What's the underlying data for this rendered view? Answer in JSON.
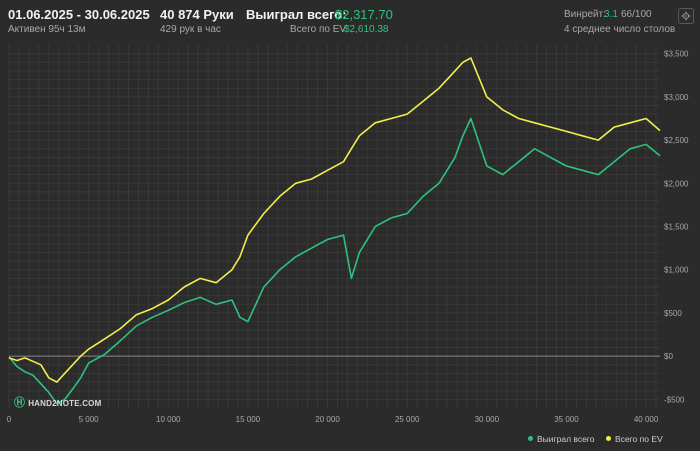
{
  "header": {
    "date_range": "01.06.2025 - 30.06.2025",
    "active_time": "Активен 95ч 13м",
    "hands": "40 874 Руки",
    "hands_per_hour": "429 рук в час",
    "won_label": "Выиграл всего:",
    "won_value": "$2,317.70",
    "ev_label": "Всего по EV:",
    "ev_value": "$2,610.38",
    "winrate_label": "Винрейт:",
    "winrate_value": "3.1",
    "winrate_extra": "66/100",
    "tables": "4 среднее число столов",
    "settings_icon": "gear-icon"
  },
  "legend": {
    "won": "Выиграл всего",
    "ev": "Всего по EV"
  },
  "logo_text": "HAND2NOTE.COM",
  "colors": {
    "won": "#2ec27e",
    "ev": "#f2ee4c",
    "background": "#2b2b2b",
    "grid": "#383838",
    "zero_line": "#8a8a8a"
  },
  "chart_data": {
    "type": "line",
    "xlim": [
      0,
      40874
    ],
    "ylim": [
      -600,
      3600
    ],
    "x_ticks": [
      0,
      5000,
      10000,
      15000,
      20000,
      25000,
      30000,
      35000,
      40000
    ],
    "x_tick_labels": [
      "0",
      "5 000",
      "10 000",
      "15 000",
      "20 000",
      "25 000",
      "30 000",
      "35 000",
      "40 000"
    ],
    "y_ticks": [
      -500,
      0,
      500,
      1000,
      1500,
      2000,
      2500,
      3000,
      3500
    ],
    "y_tick_labels": [
      "-$500",
      "$0",
      "$500",
      "$1,000",
      "$1,500",
      "$2,000",
      "$2,500",
      "$3,000",
      "$3,500"
    ],
    "grid": true,
    "legend_position": "bottom-right",
    "series": [
      {
        "name": "Выиграл всего",
        "x": [
          0,
          500,
          1000,
          1500,
          2000,
          2500,
          3000,
          3500,
          4000,
          4500,
          5000,
          6000,
          7000,
          8000,
          9000,
          10000,
          11000,
          12000,
          13000,
          14000,
          14500,
          15000,
          16000,
          17000,
          18000,
          19000,
          20000,
          21000,
          21500,
          22000,
          23000,
          24000,
          25000,
          26000,
          27000,
          28000,
          28500,
          29000,
          30000,
          31000,
          32000,
          33000,
          34000,
          35000,
          36000,
          37000,
          38000,
          39000,
          40000,
          40874
        ],
        "values": [
          -10,
          -120,
          -180,
          -220,
          -320,
          -420,
          -550,
          -500,
          -380,
          -250,
          -80,
          20,
          180,
          350,
          450,
          530,
          620,
          680,
          600,
          650,
          450,
          400,
          800,
          1000,
          1150,
          1250,
          1350,
          1400,
          900,
          1200,
          1500,
          1600,
          1650,
          1850,
          2000,
          2300,
          2550,
          2750,
          2200,
          2100,
          2250,
          2400,
          2300,
          2200,
          2150,
          2100,
          2250,
          2400,
          2450,
          2318
        ]
      },
      {
        "name": "Всего по EV",
        "x": [
          0,
          500,
          1000,
          1500,
          2000,
          2500,
          3000,
          3500,
          4000,
          4500,
          5000,
          6000,
          7000,
          8000,
          9000,
          10000,
          11000,
          12000,
          13000,
          14000,
          14500,
          15000,
          16000,
          17000,
          18000,
          19000,
          20000,
          21000,
          21500,
          22000,
          23000,
          24000,
          25000,
          26000,
          27000,
          28000,
          28500,
          29000,
          30000,
          31000,
          32000,
          33000,
          34000,
          35000,
          36000,
          37000,
          38000,
          39000,
          40000,
          40874
        ],
        "values": [
          -20,
          -50,
          -20,
          -60,
          -100,
          -250,
          -300,
          -200,
          -100,
          0,
          80,
          200,
          320,
          480,
          550,
          650,
          800,
          900,
          850,
          1000,
          1150,
          1400,
          1650,
          1850,
          2000,
          2050,
          2150,
          2250,
          2400,
          2550,
          2700,
          2750,
          2800,
          2950,
          3100,
          3300,
          3400,
          3450,
          3000,
          2850,
          2750,
          2700,
          2650,
          2600,
          2550,
          2500,
          2650,
          2700,
          2750,
          2610
        ]
      }
    ]
  }
}
